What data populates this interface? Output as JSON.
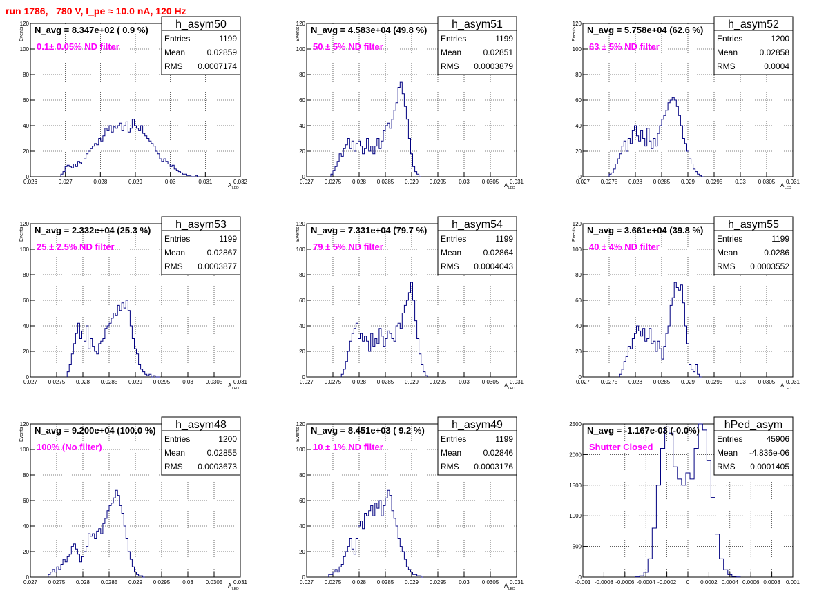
{
  "header": {
    "title": "run 1786,   780 V, I_pe ≈ 10.0 nA, 120 Hz"
  },
  "chart_data": [
    {
      "type": "histogram",
      "name": "h_asym50",
      "title": "N_avg = 8.347e+02 ( 0.9 %)",
      "annotation": "0.1± 0.05% ND filter",
      "xlabel": "A",
      "xlabel_sub": "LED",
      "ylabel": "Events",
      "xlim": [
        0.026,
        0.032
      ],
      "ylim": [
        0,
        120
      ],
      "xticks": [
        0.026,
        0.027,
        0.028,
        0.029,
        0.03,
        0.031,
        0.032
      ],
      "xticklabels": [
        "0.026",
        "0.027",
        "0.028",
        "0.029",
        "0.03",
        "0.031",
        "0.032"
      ],
      "yticks": [
        0,
        20,
        40,
        60,
        80,
        100,
        120
      ],
      "stats": {
        "Entries": "1199",
        "Mean": "0.02859",
        "RMS": "0.0007174"
      },
      "bin_centers": [
        0.0269,
        0.02696,
        0.02702,
        0.02708,
        0.02714,
        0.0272,
        0.02726,
        0.02732,
        0.02738,
        0.02744,
        0.0275,
        0.02756,
        0.02762,
        0.02768,
        0.02774,
        0.0278,
        0.02786,
        0.02792,
        0.02798,
        0.02804,
        0.0281,
        0.02816,
        0.02822,
        0.02828,
        0.02834,
        0.0284,
        0.02846,
        0.02852,
        0.02858,
        0.02864,
        0.0287,
        0.02876,
        0.02882,
        0.02888,
        0.02894,
        0.029,
        0.02906,
        0.02912,
        0.02918,
        0.02924,
        0.0293,
        0.02936,
        0.02942,
        0.02948,
        0.02954,
        0.0296,
        0.02966,
        0.02972,
        0.02978,
        0.02984,
        0.0299,
        0.02996,
        0.03002,
        0.03008,
        0.03014,
        0.0302,
        0.03026,
        0.03032,
        0.03038,
        0.03044,
        0.0305,
        0.03056,
        0.03062,
        0.03068,
        0.03074,
        0.0308
      ],
      "counts": [
        2,
        4,
        8,
        9,
        8,
        7,
        10,
        8,
        12,
        11,
        10,
        14,
        18,
        20,
        22,
        24,
        26,
        25,
        30,
        28,
        32,
        38,
        36,
        40,
        35,
        39,
        38,
        40,
        42,
        36,
        40,
        43,
        35,
        38,
        45,
        40,
        38,
        36,
        40,
        34,
        32,
        30,
        28,
        26,
        24,
        20,
        18,
        14,
        12,
        14,
        12,
        10,
        8,
        9,
        6,
        5,
        4,
        3,
        2,
        2,
        1,
        1,
        0,
        0,
        1,
        0
      ]
    },
    {
      "type": "histogram",
      "name": "h_asym51",
      "title": "N_avg = 4.583e+04 (49.8 %)",
      "annotation": "50 ± 5% ND filter",
      "xlabel": "A",
      "xlabel_sub": "LED",
      "ylabel": "Events",
      "xlim": [
        0.027,
        0.031
      ],
      "ylim": [
        0,
        120
      ],
      "xticks": [
        0.027,
        0.0275,
        0.028,
        0.0285,
        0.029,
        0.0295,
        0.03,
        0.0305,
        0.031
      ],
      "xticklabels": [
        "0.027",
        "0.0275",
        "0.028",
        "0.0285",
        "0.029",
        "0.0295",
        "0.03",
        "0.0305",
        "0.031"
      ],
      "yticks": [
        0,
        20,
        40,
        60,
        80,
        100,
        120
      ],
      "stats": {
        "Entries": "1199",
        "Mean": "0.02851",
        "RMS": "0.0003879"
      },
      "bin_centers": [
        0.02748,
        0.02752,
        0.02756,
        0.0276,
        0.02764,
        0.02768,
        0.02772,
        0.02776,
        0.0278,
        0.02784,
        0.02788,
        0.02792,
        0.02796,
        0.028,
        0.02804,
        0.02808,
        0.02812,
        0.02816,
        0.0282,
        0.02824,
        0.02828,
        0.02832,
        0.02836,
        0.0284,
        0.02844,
        0.02848,
        0.02852,
        0.02856,
        0.0286,
        0.02864,
        0.02868,
        0.02872,
        0.02876,
        0.0288,
        0.02884,
        0.02888,
        0.02892,
        0.02896,
        0.029,
        0.02904,
        0.02908,
        0.02912,
        0.02916
      ],
      "counts": [
        2,
        5,
        8,
        12,
        18,
        16,
        22,
        25,
        30,
        22,
        28,
        20,
        26,
        28,
        24,
        18,
        22,
        30,
        20,
        24,
        18,
        24,
        30,
        22,
        28,
        36,
        40,
        42,
        38,
        45,
        52,
        58,
        70,
        74,
        65,
        55,
        45,
        30,
        18,
        8,
        4,
        2,
        0
      ]
    },
    {
      "type": "histogram",
      "name": "h_asym52",
      "title": "N_avg = 5.758e+04 (62.6 %)",
      "annotation": "63 ± 5% ND filter",
      "xlabel": "A",
      "xlabel_sub": "LED",
      "ylabel": "Events",
      "xlim": [
        0.027,
        0.031
      ],
      "ylim": [
        0,
        120
      ],
      "xticks": [
        0.027,
        0.0275,
        0.028,
        0.0285,
        0.029,
        0.0295,
        0.03,
        0.0305,
        0.031
      ],
      "xticklabels": [
        "0.027",
        "0.0275",
        "0.028",
        "0.0285",
        "0.029",
        "0.0295",
        "0.03",
        "0.0305",
        "0.031"
      ],
      "yticks": [
        0,
        20,
        40,
        60,
        80,
        100,
        120
      ],
      "stats": {
        "Entries": "1200",
        "Mean": "0.02858",
        "RMS": "0.0004"
      },
      "bin_centers": [
        0.02752,
        0.02756,
        0.0276,
        0.02764,
        0.02768,
        0.02772,
        0.02776,
        0.0278,
        0.02784,
        0.02788,
        0.02792,
        0.02796,
        0.028,
        0.02804,
        0.02808,
        0.02812,
        0.02816,
        0.0282,
        0.02824,
        0.02828,
        0.02832,
        0.02836,
        0.0284,
        0.02844,
        0.02848,
        0.02852,
        0.02856,
        0.0286,
        0.02864,
        0.02868,
        0.02872,
        0.02876,
        0.0288,
        0.02884,
        0.02888,
        0.02892,
        0.02896,
        0.029,
        0.02904,
        0.02908,
        0.02912,
        0.02916,
        0.0292,
        0.02924,
        0.02928
      ],
      "counts": [
        2,
        3,
        6,
        10,
        14,
        18,
        24,
        28,
        20,
        30,
        26,
        36,
        40,
        32,
        28,
        36,
        30,
        24,
        38,
        28,
        22,
        30,
        24,
        34,
        40,
        45,
        48,
        52,
        58,
        60,
        62,
        60,
        55,
        48,
        40,
        30,
        26,
        20,
        14,
        10,
        6,
        4,
        2,
        1,
        0
      ]
    },
    {
      "type": "histogram",
      "name": "h_asym53",
      "title": "N_avg = 2.332e+04 (25.3 %)",
      "annotation": "25 ± 2.5% ND filter",
      "xlabel": "A",
      "xlabel_sub": "LED",
      "ylabel": "Events",
      "xlim": [
        0.027,
        0.031
      ],
      "ylim": [
        0,
        120
      ],
      "xticks": [
        0.027,
        0.0275,
        0.028,
        0.0285,
        0.029,
        0.0295,
        0.03,
        0.0305,
        0.031
      ],
      "xticklabels": [
        "0.027",
        "0.0275",
        "0.028",
        "0.0285",
        "0.029",
        "0.0295",
        "0.03",
        "0.0305",
        "0.031"
      ],
      "yticks": [
        0,
        20,
        40,
        60,
        80,
        100,
        120
      ],
      "stats": {
        "Entries": "1199",
        "Mean": "0.02867",
        "RMS": "0.0003877"
      },
      "bin_centers": [
        0.02772,
        0.02776,
        0.0278,
        0.02784,
        0.02788,
        0.02792,
        0.02796,
        0.028,
        0.02804,
        0.02808,
        0.02812,
        0.02816,
        0.0282,
        0.02824,
        0.02828,
        0.02832,
        0.02836,
        0.0284,
        0.02844,
        0.02848,
        0.02852,
        0.02856,
        0.0286,
        0.02864,
        0.02868,
        0.02872,
        0.02876,
        0.0288,
        0.02884,
        0.02888,
        0.02892,
        0.02896,
        0.029,
        0.02904,
        0.02908,
        0.02912,
        0.02916,
        0.0292,
        0.02924,
        0.02928,
        0.02932,
        0.02936,
        0.0294,
        0.02944
      ],
      "counts": [
        4,
        10,
        18,
        26,
        34,
        42,
        30,
        36,
        28,
        40,
        22,
        30,
        24,
        20,
        18,
        26,
        28,
        30,
        38,
        40,
        42,
        46,
        50,
        48,
        56,
        52,
        58,
        54,
        60,
        52,
        40,
        30,
        22,
        18,
        10,
        6,
        4,
        2,
        1,
        2,
        0,
        1,
        0,
        0
      ]
    },
    {
      "type": "histogram",
      "name": "h_asym54",
      "title": "N_avg = 7.331e+04 (79.7 %)",
      "annotation": "79 ± 5% ND filter",
      "xlabel": "A",
      "xlabel_sub": "LED",
      "ylabel": "Events",
      "xlim": [
        0.027,
        0.031
      ],
      "ylim": [
        0,
        120
      ],
      "xticks": [
        0.027,
        0.0275,
        0.028,
        0.0285,
        0.029,
        0.0295,
        0.03,
        0.0305,
        0.031
      ],
      "xticklabels": [
        "0.027",
        "0.0275",
        "0.028",
        "0.0285",
        "0.029",
        "0.0295",
        "0.03",
        "0.0305",
        "0.031"
      ],
      "yticks": [
        0,
        20,
        40,
        60,
        80,
        100,
        120
      ],
      "stats": {
        "Entries": "1199",
        "Mean": "0.02864",
        "RMS": "0.0004043"
      },
      "bin_centers": [
        0.02768,
        0.02772,
        0.02776,
        0.0278,
        0.02784,
        0.02788,
        0.02792,
        0.02796,
        0.028,
        0.02804,
        0.02808,
        0.02812,
        0.02816,
        0.0282,
        0.02824,
        0.02828,
        0.02832,
        0.02836,
        0.0284,
        0.02844,
        0.02848,
        0.02852,
        0.02856,
        0.0286,
        0.02864,
        0.02868,
        0.02872,
        0.02876,
        0.0288,
        0.02884,
        0.02888,
        0.02892,
        0.02896,
        0.029,
        0.02904,
        0.02908,
        0.02912,
        0.02916,
        0.0292,
        0.02924,
        0.02928
      ],
      "counts": [
        2,
        6,
        12,
        20,
        28,
        34,
        38,
        42,
        30,
        34,
        28,
        32,
        28,
        20,
        34,
        24,
        30,
        26,
        38,
        32,
        24,
        30,
        36,
        34,
        30,
        28,
        40,
        42,
        38,
        50,
        56,
        60,
        66,
        74,
        60,
        44,
        30,
        18,
        10,
        4,
        1
      ]
    },
    {
      "type": "histogram",
      "name": "h_asym55",
      "title": "N_avg = 3.661e+04 (39.8 %)",
      "annotation": "40 ± 4% ND filter",
      "xlabel": "A",
      "xlabel_sub": "LED",
      "ylabel": "Events",
      "xlim": [
        0.027,
        0.031
      ],
      "ylim": [
        0,
        120
      ],
      "xticks": [
        0.027,
        0.0275,
        0.028,
        0.0285,
        0.029,
        0.0295,
        0.03,
        0.0305,
        0.031
      ],
      "xticklabels": [
        "0.027",
        "0.0275",
        "0.028",
        "0.0285",
        "0.029",
        "0.0295",
        "0.03",
        "0.0305",
        "0.031"
      ],
      "yticks": [
        0,
        20,
        40,
        60,
        80,
        100,
        120
      ],
      "stats": {
        "Entries": "1199",
        "Mean": "0.0286",
        "RMS": "0.0003552"
      },
      "bin_centers": [
        0.02772,
        0.02776,
        0.0278,
        0.02784,
        0.02788,
        0.02792,
        0.02796,
        0.028,
        0.02804,
        0.02808,
        0.02812,
        0.02816,
        0.0282,
        0.02824,
        0.02828,
        0.02832,
        0.02836,
        0.0284,
        0.02844,
        0.02848,
        0.02852,
        0.02856,
        0.0286,
        0.02864,
        0.02868,
        0.02872,
        0.02876,
        0.0288,
        0.02884,
        0.02888,
        0.02892,
        0.02896,
        0.029,
        0.02904,
        0.02908,
        0.02912,
        0.02916,
        0.0292,
        0.02924
      ],
      "counts": [
        2,
        6,
        12,
        16,
        24,
        22,
        30,
        34,
        40,
        36,
        32,
        38,
        28,
        30,
        38,
        26,
        28,
        20,
        28,
        22,
        14,
        24,
        34,
        40,
        56,
        62,
        74,
        70,
        68,
        72,
        58,
        40,
        26,
        10,
        6,
        4,
        10,
        2,
        0
      ]
    },
    {
      "type": "histogram",
      "name": "h_asym48",
      "title": "N_avg = 9.200e+04 (100.0 %)",
      "annotation": "100% (No filter)",
      "xlabel": "A",
      "xlabel_sub": "LED",
      "ylabel": "Events",
      "xlim": [
        0.027,
        0.031
      ],
      "ylim": [
        0,
        120
      ],
      "xticks": [
        0.027,
        0.0275,
        0.028,
        0.0285,
        0.029,
        0.0295,
        0.03,
        0.0305,
        0.031
      ],
      "xticklabels": [
        "0.027",
        "0.0275",
        "0.028",
        "0.0285",
        "0.029",
        "0.0295",
        "0.03",
        "0.0305",
        "0.031"
      ],
      "yticks": [
        0,
        20,
        40,
        60,
        80,
        100,
        120
      ],
      "stats": {
        "Entries": "1200",
        "Mean": "0.02855",
        "RMS": "0.0003673"
      },
      "bin_centers": [
        0.02736,
        0.0274,
        0.02744,
        0.02748,
        0.02752,
        0.02756,
        0.0276,
        0.02764,
        0.02768,
        0.02772,
        0.02776,
        0.0278,
        0.02784,
        0.02788,
        0.02792,
        0.02796,
        0.028,
        0.02804,
        0.02808,
        0.02812,
        0.02816,
        0.0282,
        0.02824,
        0.02828,
        0.02832,
        0.02836,
        0.0284,
        0.02844,
        0.02848,
        0.02852,
        0.02856,
        0.0286,
        0.02864,
        0.02868,
        0.02872,
        0.02876,
        0.0288,
        0.02884,
        0.02888,
        0.02892,
        0.02896,
        0.029,
        0.02904,
        0.02908,
        0.02912,
        0.02916
      ],
      "counts": [
        2,
        4,
        6,
        4,
        8,
        6,
        10,
        14,
        12,
        16,
        18,
        24,
        26,
        22,
        18,
        12,
        16,
        20,
        24,
        34,
        32,
        34,
        30,
        36,
        38,
        34,
        42,
        46,
        52,
        56,
        58,
        62,
        68,
        64,
        56,
        50,
        40,
        30,
        20,
        14,
        8,
        4,
        2,
        1,
        1,
        0
      ]
    },
    {
      "type": "histogram",
      "name": "h_asym49",
      "title": "N_avg = 8.451e+03 ( 9.2 %)",
      "annotation": "10 ± 1% ND filter",
      "xlabel": "A",
      "xlabel_sub": "LED",
      "ylabel": "Events",
      "xlim": [
        0.027,
        0.031
      ],
      "ylim": [
        0,
        120
      ],
      "xticks": [
        0.027,
        0.0275,
        0.028,
        0.0285,
        0.029,
        0.0295,
        0.03,
        0.0305,
        0.031
      ],
      "xticklabels": [
        "0.027",
        "0.0275",
        "0.028",
        "0.0285",
        "0.029",
        "0.0295",
        "0.03",
        "0.0305",
        "0.031"
      ],
      "yticks": [
        0,
        20,
        40,
        60,
        80,
        100,
        120
      ],
      "stats": {
        "Entries": "1199",
        "Mean": "0.02846",
        "RMS": "0.0003176"
      },
      "bin_centers": [
        0.02744,
        0.02748,
        0.02752,
        0.02756,
        0.0276,
        0.02764,
        0.02768,
        0.02772,
        0.02776,
        0.0278,
        0.02784,
        0.02788,
        0.02792,
        0.02796,
        0.028,
        0.02804,
        0.02808,
        0.02812,
        0.02816,
        0.0282,
        0.02824,
        0.02828,
        0.02832,
        0.02836,
        0.0284,
        0.02844,
        0.02848,
        0.02852,
        0.02856,
        0.0286,
        0.02864,
        0.02868,
        0.02872,
        0.02876,
        0.0288,
        0.02884,
        0.02888,
        0.02892,
        0.02896,
        0.029,
        0.02904,
        0.02908,
        0.02912,
        0.02916,
        0.0292
      ],
      "counts": [
        2,
        2,
        4,
        6,
        4,
        8,
        10,
        16,
        20,
        24,
        30,
        22,
        18,
        30,
        40,
        44,
        38,
        50,
        48,
        52,
        56,
        48,
        58,
        54,
        60,
        48,
        56,
        62,
        68,
        64,
        52,
        46,
        40,
        30,
        24,
        20,
        14,
        8,
        6,
        4,
        2,
        2,
        1,
        1,
        0
      ]
    },
    {
      "type": "histogram",
      "name": "hPed_asym",
      "title": "N_avg = -1.167e-03 (-0.0%)",
      "annotation": "Shutter Closed",
      "xlabel": "",
      "xlabel_sub": "",
      "ylabel": "",
      "xlim": [
        -0.001,
        0.001
      ],
      "ylim": [
        0,
        2500
      ],
      "xticks": [
        -0.001,
        -0.0008,
        -0.0006,
        -0.0004,
        -0.0002,
        0,
        0.0002,
        0.0004,
        0.0006,
        0.0008,
        0.001
      ],
      "xticklabels": [
        "-0.001",
        "-0.0008",
        "-0.0006",
        "-0.0004",
        "-0.0002",
        "0",
        "0.0002",
        "0.0004",
        "0.0006",
        "0.0008",
        "0.001"
      ],
      "yticks": [
        0,
        500,
        1000,
        1500,
        2000,
        2500
      ],
      "stats": {
        "Entries": "45906",
        "Mean": "-4.836e-06",
        "RMS": "0.0001405"
      },
      "bin_centers": [
        -0.00048,
        -0.00044,
        -0.0004,
        -0.00036,
        -0.00032,
        -0.00028,
        -0.00024,
        -0.0002,
        -0.00016,
        -0.00012,
        -8e-05,
        -4e-05,
        0.0,
        4e-05,
        8e-05,
        0.00012,
        0.00016,
        0.0002,
        0.00024,
        0.00028,
        0.00032,
        0.00036,
        0.0004,
        0.00044,
        0.00048
      ],
      "counts": [
        5,
        20,
        80,
        300,
        800,
        1500,
        2100,
        2450,
        2350,
        1800,
        1600,
        1500,
        1700,
        1600,
        2100,
        2500,
        2400,
        1900,
        1300,
        700,
        300,
        120,
        40,
        10,
        2
      ]
    }
  ]
}
